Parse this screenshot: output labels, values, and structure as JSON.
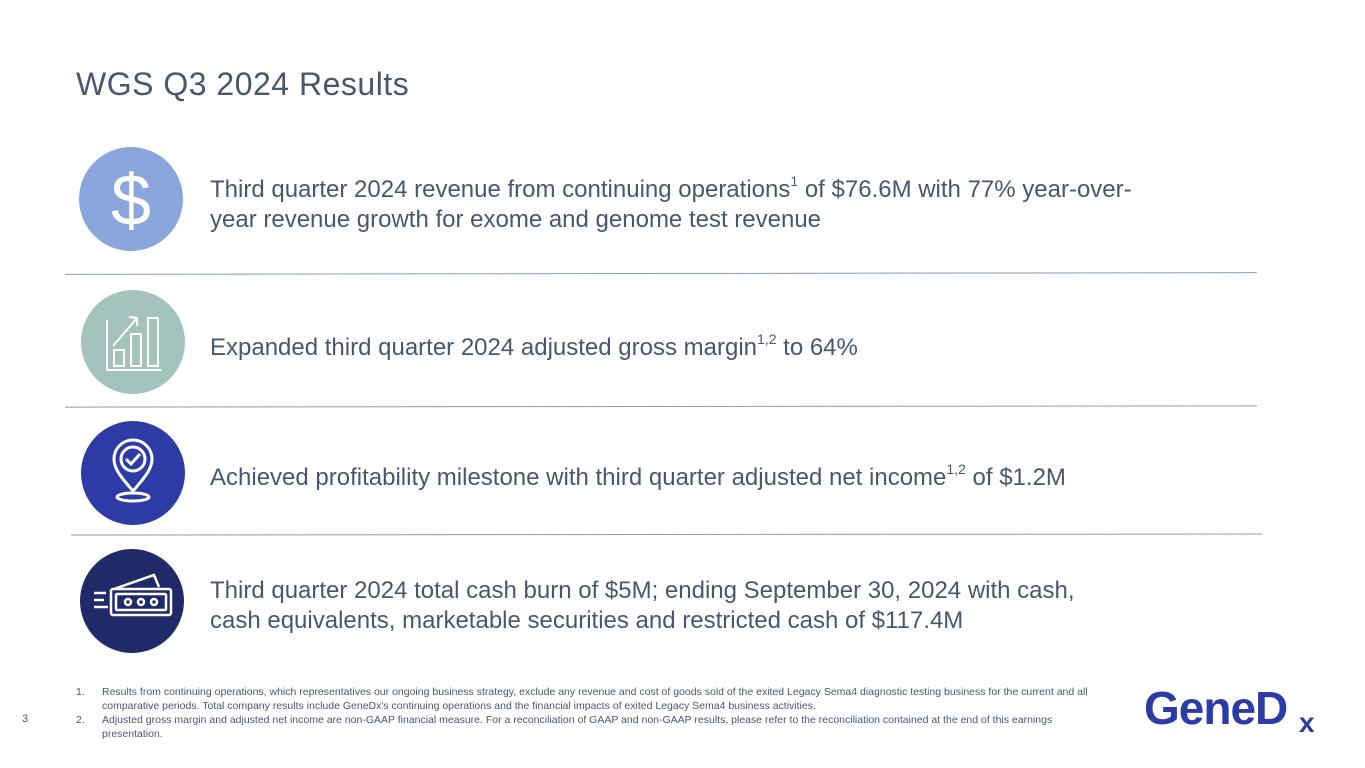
{
  "slide": {
    "title": "WGS Q3 2024 Results",
    "page_number": "3"
  },
  "rows": [
    {
      "icon": "dollar-icon",
      "color": "#8aa6dc",
      "text_before": "Third quarter 2024 revenue from continuing operations",
      "sup": "1",
      "text_line1_after": " of $76.6M with 77% year-over-",
      "text_line2": "year revenue growth for exome and genome test revenue"
    },
    {
      "icon": "growth-chart-icon",
      "color": "#a3c3bc",
      "text_before": "Expanded third quarter 2024 adjusted gross margin",
      "sup": "1,2",
      "text_after": " to 64%"
    },
    {
      "icon": "location-check-icon",
      "color": "#2d3ba6",
      "text_before": "Achieved profitability milestone with third quarter adjusted net income",
      "sup": "1,2",
      "text_after": " of $1.2M"
    },
    {
      "icon": "cash-icon",
      "color": "#1f2a69",
      "text_line1": "Third quarter 2024 total cash burn of $5M; ending September 30, 2024 with cash,",
      "text_line2": "cash equivalents, marketable securities and restricted cash of $117.4M"
    }
  ],
  "footnotes": [
    {
      "num": "1.",
      "text": "Results from continuing operations, which representatives our ongoing business strategy, exclude any revenue and cost of goods sold of the exited Legacy Sema4 diagnostic testing business for the current and all comparative periods. Total company results include GeneDx's continuing operations and the financial impacts of exited Legacy Sema4 business activities."
    },
    {
      "num": "2.",
      "text": "Adjusted gross margin and adjusted net income are non-GAAP financial measure. For a reconciliation of GAAP and non-GAAP results, please refer to the reconciliation contained at the end of this earnings presentation."
    }
  ],
  "logo": {
    "part1": "Gene",
    "part2": "D",
    "part3": "x",
    "color": "#2d3ba6"
  }
}
